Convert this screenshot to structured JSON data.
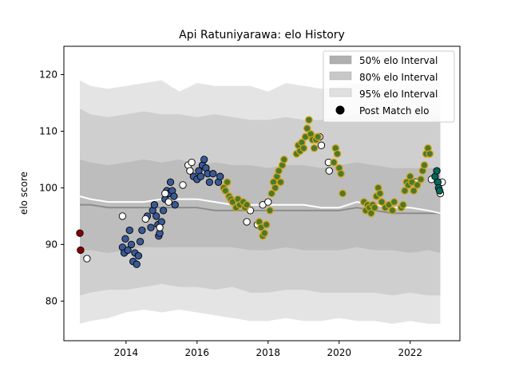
{
  "chart_data": {
    "type": "scatter",
    "title": "Api Ratuniyarawa: elo History",
    "xlabel": "",
    "ylabel": "elo score",
    "xlim": [
      2012.25,
      2023.4
    ],
    "ylim": [
      73,
      125
    ],
    "x_ticks": [
      2014,
      2016,
      2018,
      2020,
      2022
    ],
    "y_ticks": [
      80,
      90,
      100,
      110,
      120
    ],
    "grid": false,
    "legend_position": "top-right",
    "legend": [
      {
        "label": "50% elo Interval",
        "color": "#b0b0b0"
      },
      {
        "label": "80% elo Interval",
        "color": "#c8c8c8"
      },
      {
        "label": "95% elo Interval",
        "color": "#e0e0e0"
      },
      {
        "label": "Post Match elo",
        "color": "#000000"
      }
    ],
    "bands": {
      "x": [
        2012.7,
        2013.0,
        2013.5,
        2014.0,
        2014.5,
        2015.0,
        2015.5,
        2016.0,
        2016.5,
        2017.0,
        2017.5,
        2018.0,
        2018.5,
        2019.0,
        2019.5,
        2020.0,
        2020.5,
        2021.0,
        2021.5,
        2022.0,
        2022.5,
        2022.85
      ],
      "p95_upper": [
        119,
        118,
        117.5,
        118,
        118.5,
        119,
        117,
        118.5,
        118,
        118,
        118,
        117,
        118.5,
        118,
        117.5,
        118,
        118.5,
        118,
        117.5,
        118,
        118.5,
        118.5
      ],
      "p95_lower": [
        76,
        76.5,
        77,
        78,
        78.5,
        78,
        78.5,
        78,
        77.5,
        77,
        76.5,
        76.5,
        77,
        76.5,
        76.5,
        77,
        76.5,
        76.5,
        76,
        76.5,
        76,
        76
      ],
      "p80_upper": [
        114,
        113,
        112.5,
        113,
        113.5,
        113,
        113,
        112.5,
        113,
        112.5,
        112,
        112,
        112.5,
        112,
        112,
        112.5,
        113,
        113,
        112.5,
        113,
        113,
        112.5
      ],
      "p80_lower": [
        81,
        81.5,
        82,
        82,
        82.5,
        83,
        82.5,
        82.5,
        82,
        82.5,
        81.5,
        81.5,
        82,
        82,
        81.5,
        81.5,
        81.5,
        81.5,
        81,
        81.5,
        81,
        81
      ],
      "p50_upper": [
        105,
        104.5,
        104,
        104.5,
        105,
        104.5,
        105,
        104,
        104.5,
        104,
        104,
        103.5,
        104,
        104,
        103.5,
        104,
        104.5,
        104,
        103.5,
        103.5,
        103.5,
        103.5
      ],
      "p50_lower": [
        89,
        89,
        88.5,
        89,
        89.5,
        89.5,
        89.5,
        89.5,
        89.5,
        89.5,
        89,
        89,
        89.5,
        89,
        89,
        89,
        89.5,
        89,
        89,
        88.5,
        89,
        88.5
      ],
      "median": [
        97,
        97,
        96.5,
        96.5,
        96.5,
        96.5,
        96.5,
        96.5,
        96,
        96,
        96,
        96,
        96,
        96,
        96,
        96,
        96.5,
        96,
        95.5,
        95.5,
        95.5,
        95.5
      ],
      "mean": [
        98.5,
        98,
        97.5,
        97.5,
        97.5,
        98,
        98,
        98,
        97.5,
        97,
        97,
        97,
        97,
        97,
        96.5,
        96.5,
        97.5,
        97,
        96.5,
        96.5,
        96,
        95.5
      ]
    },
    "series": [
      {
        "color": "#8b0000",
        "points": [
          [
            2012.7,
            92
          ],
          [
            2012.72,
            89
          ]
        ]
      },
      {
        "color": "#3a5a96",
        "points": [
          [
            2013.9,
            89.5
          ],
          [
            2013.95,
            88.5
          ],
          [
            2013.98,
            91
          ],
          [
            2014.05,
            89
          ],
          [
            2014.1,
            92.5
          ],
          [
            2014.15,
            90
          ],
          [
            2014.2,
            87
          ],
          [
            2014.25,
            88.5
          ],
          [
            2014.3,
            86.5
          ],
          [
            2014.35,
            88
          ],
          [
            2014.4,
            90.5
          ],
          [
            2014.45,
            92.5
          ],
          [
            2014.6,
            95
          ],
          [
            2014.7,
            93
          ],
          [
            2014.75,
            96
          ],
          [
            2014.8,
            97
          ],
          [
            2014.85,
            95
          ],
          [
            2014.9,
            93.5
          ],
          [
            2014.92,
            91.5
          ],
          [
            2014.95,
            92
          ],
          [
            2015.0,
            94
          ],
          [
            2015.05,
            96
          ],
          [
            2015.1,
            98
          ],
          [
            2015.15,
            99.5
          ],
          [
            2015.2,
            99
          ],
          [
            2015.25,
            101
          ],
          [
            2015.3,
            99.5
          ],
          [
            2015.35,
            98.5
          ],
          [
            2015.38,
            97
          ],
          [
            2015.9,
            102
          ],
          [
            2016.0,
            101.5
          ],
          [
            2016.05,
            103
          ],
          [
            2016.1,
            102
          ],
          [
            2016.15,
            104
          ],
          [
            2016.2,
            105
          ],
          [
            2016.25,
            103.5
          ],
          [
            2016.3,
            102.5
          ],
          [
            2016.35,
            101
          ],
          [
            2016.45,
            102.5
          ],
          [
            2016.6,
            101
          ],
          [
            2016.65,
            102
          ]
        ]
      },
      {
        "color": "#ffffff",
        "points": [
          [
            2012.9,
            87.5
          ],
          [
            2013.9,
            95
          ],
          [
            2014.55,
            94.5
          ],
          [
            2014.95,
            93
          ],
          [
            2015.1,
            99
          ],
          [
            2015.2,
            97.5
          ],
          [
            2015.6,
            100.5
          ],
          [
            2015.75,
            104
          ],
          [
            2015.8,
            103
          ],
          [
            2015.85,
            104.5
          ],
          [
            2017.5,
            96
          ],
          [
            2017.4,
            94
          ],
          [
            2017.7,
            93.5
          ],
          [
            2017.85,
            97
          ],
          [
            2018.0,
            97.5
          ],
          [
            2019.45,
            109
          ],
          [
            2019.5,
            107.5
          ],
          [
            2019.7,
            104.5
          ],
          [
            2019.72,
            103
          ],
          [
            2022.15,
            101
          ],
          [
            2022.6,
            101.5
          ],
          [
            2022.85,
            99
          ],
          [
            2022.9,
            101
          ]
        ]
      },
      {
        "color": "#4a7a2a",
        "edge": "#d4a017",
        "points": [
          [
            2016.75,
            100
          ],
          [
            2016.8,
            99.5
          ],
          [
            2016.85,
            101
          ],
          [
            2016.9,
            98.5
          ],
          [
            2016.95,
            98
          ],
          [
            2017.0,
            97.5
          ],
          [
            2017.1,
            96.5
          ],
          [
            2017.15,
            98
          ],
          [
            2017.2,
            97
          ],
          [
            2017.3,
            97.5
          ],
          [
            2017.35,
            96.5
          ],
          [
            2017.4,
            97
          ],
          [
            2017.75,
            94
          ],
          [
            2017.8,
            93
          ],
          [
            2017.85,
            91.5
          ],
          [
            2017.9,
            92
          ],
          [
            2017.95,
            93.5
          ],
          [
            2018.05,
            96
          ],
          [
            2018.1,
            99
          ],
          [
            2018.15,
            101
          ],
          [
            2018.2,
            100
          ],
          [
            2018.25,
            102
          ],
          [
            2018.3,
            103
          ],
          [
            2018.35,
            101
          ],
          [
            2018.4,
            104
          ],
          [
            2018.45,
            105
          ],
          [
            2018.8,
            106
          ],
          [
            2018.85,
            107.5
          ],
          [
            2018.9,
            106.5
          ],
          [
            2018.95,
            108
          ],
          [
            2019.0,
            107
          ],
          [
            2019.05,
            109
          ],
          [
            2019.1,
            110.5
          ],
          [
            2019.15,
            112
          ],
          [
            2019.2,
            109.5
          ],
          [
            2019.25,
            108.5
          ],
          [
            2019.3,
            107
          ],
          [
            2019.35,
            108.5
          ],
          [
            2019.4,
            109
          ],
          [
            2019.85,
            104.5
          ],
          [
            2019.9,
            107
          ],
          [
            2019.95,
            106
          ],
          [
            2020.0,
            103.5
          ],
          [
            2020.05,
            102.5
          ],
          [
            2020.1,
            99
          ],
          [
            2020.7,
            97.5
          ],
          [
            2020.75,
            96
          ],
          [
            2020.8,
            97
          ],
          [
            2020.85,
            96.5
          ],
          [
            2020.9,
            95.5
          ],
          [
            2020.95,
            97
          ],
          [
            2021.0,
            96.5
          ],
          [
            2021.05,
            98.5
          ],
          [
            2021.1,
            100
          ],
          [
            2021.15,
            99
          ],
          [
            2021.2,
            97.5
          ],
          [
            2021.3,
            96.5
          ],
          [
            2021.4,
            97
          ],
          [
            2021.5,
            96
          ],
          [
            2021.55,
            97.5
          ],
          [
            2021.75,
            96.5
          ],
          [
            2021.8,
            97
          ],
          [
            2021.85,
            99.5
          ],
          [
            2021.9,
            101
          ],
          [
            2021.95,
            100.5
          ],
          [
            2022.0,
            102
          ],
          [
            2022.05,
            101
          ],
          [
            2022.1,
            99.5
          ],
          [
            2022.2,
            100.5
          ],
          [
            2022.3,
            101.5
          ],
          [
            2022.35,
            103
          ],
          [
            2022.4,
            104
          ],
          [
            2022.45,
            106
          ],
          [
            2022.5,
            107
          ],
          [
            2022.55,
            106
          ]
        ]
      },
      {
        "color": "#00695c",
        "points": [
          [
            2022.7,
            102
          ],
          [
            2022.75,
            103
          ],
          [
            2022.78,
            101
          ],
          [
            2022.8,
            100
          ],
          [
            2022.83,
            99.5
          ]
        ]
      }
    ]
  }
}
